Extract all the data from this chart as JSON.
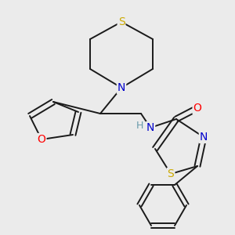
{
  "background_color": "#ebebeb",
  "atom_colors": {
    "C": "#000000",
    "N": "#0000cc",
    "O": "#ff0000",
    "S": "#ccaa00",
    "H": "#6699aa"
  },
  "bond_color": "#1a1a1a",
  "bond_width": 1.4,
  "font_size_atoms": 10,
  "font_size_H": 9
}
